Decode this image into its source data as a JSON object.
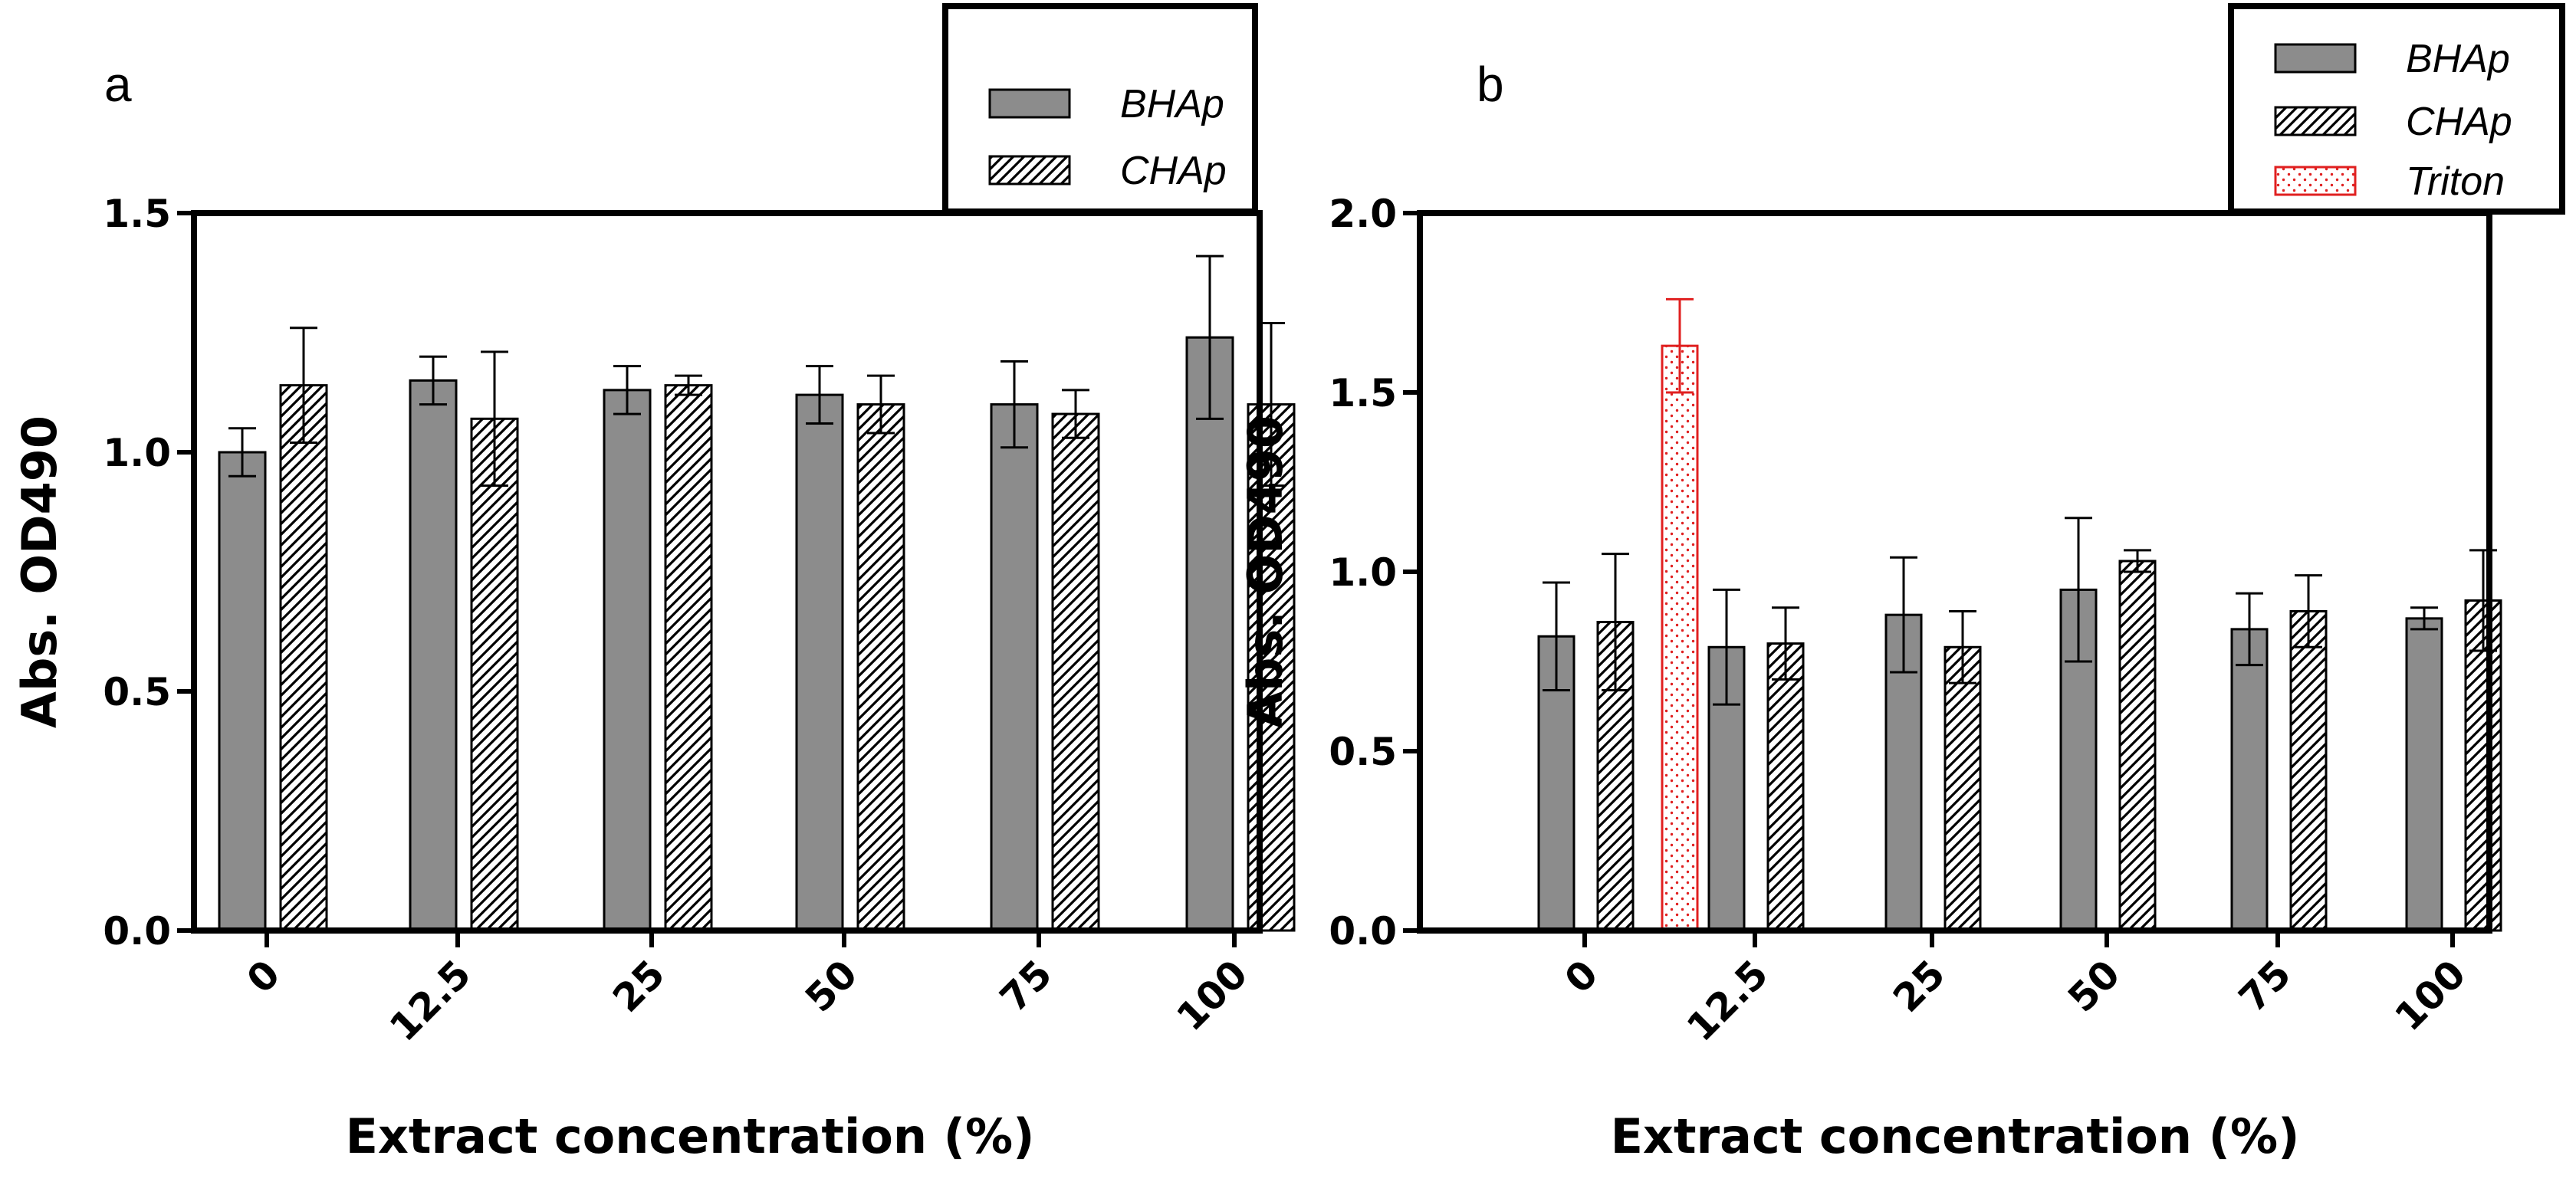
{
  "chart_data": [
    {
      "panel": "a",
      "type": "bar",
      "title": "",
      "xlabel": "Extract concentration (%)",
      "ylabel": "Abs. OD490",
      "ylim": [
        0,
        1.5
      ],
      "yticks": [
        "0.0",
        "0.5",
        "1.0",
        "1.5"
      ],
      "yticks_values": [
        0,
        0.5,
        1.0,
        1.5
      ],
      "categories": [
        "0",
        "12.5",
        "25",
        "50",
        "75",
        "100"
      ],
      "legend_position": "top-right",
      "series": [
        {
          "name": "BHAp",
          "pattern": "solid-gray",
          "color": "#8c8c8c",
          "values": [
            1.0,
            1.15,
            1.13,
            1.12,
            1.1,
            1.24
          ],
          "errors": [
            0.05,
            0.05,
            0.05,
            0.06,
            0.09,
            0.17
          ]
        },
        {
          "name": "CHAp",
          "pattern": "diagonal-hatch",
          "color": "#000000",
          "values": [
            1.14,
            1.07,
            1.14,
            1.1,
            1.08,
            1.1
          ],
          "errors": [
            0.12,
            0.14,
            0.02,
            0.06,
            0.05,
            0.17
          ]
        }
      ]
    },
    {
      "panel": "b",
      "type": "bar",
      "title": "",
      "xlabel": "Extract concentration (%)",
      "ylabel": "Abs. OD490",
      "ylim": [
        0,
        2.0
      ],
      "yticks": [
        "0.0",
        "0.5",
        "1.0",
        "1.5",
        "2.0"
      ],
      "yticks_values": [
        0,
        0.5,
        1.0,
        1.5,
        2.0
      ],
      "categories": [
        "0",
        "12.5",
        "25",
        "50",
        "75",
        "100"
      ],
      "legend_position": "top-right",
      "series": [
        {
          "name": "BHAp",
          "pattern": "solid-gray",
          "color": "#8c8c8c",
          "values": [
            0.82,
            0.79,
            0.88,
            0.95,
            0.84,
            0.87
          ],
          "errors": [
            0.15,
            0.16,
            0.16,
            0.2,
            0.1,
            0.03
          ]
        },
        {
          "name": "CHAp",
          "pattern": "diagonal-hatch",
          "color": "#000000",
          "values": [
            0.86,
            0.8,
            0.79,
            1.03,
            0.89,
            0.92
          ],
          "errors": [
            0.19,
            0.1,
            0.1,
            0.03,
            0.1,
            0.14
          ]
        },
        {
          "name": "Triton",
          "pattern": "dotted",
          "color": "#e02020",
          "values": [
            1.63,
            null,
            null,
            null,
            null,
            null
          ],
          "errors": [
            0.13,
            null,
            null,
            null,
            null,
            null
          ]
        }
      ]
    }
  ]
}
